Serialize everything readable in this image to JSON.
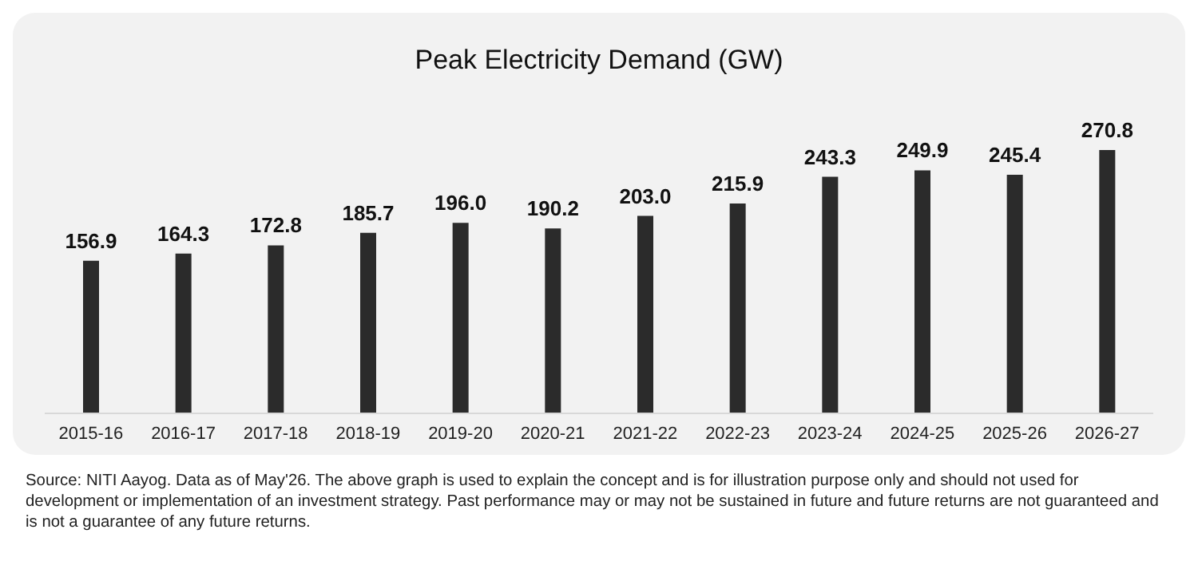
{
  "chart_data": {
    "type": "bar",
    "title": "Peak Electricity Demand (GW)",
    "categories": [
      "2015-16",
      "2016-17",
      "2017-18",
      "2018-19",
      "2019-20",
      "2020-21",
      "2021-22",
      "2022-23",
      "2023-24",
      "2024-25",
      "2025-26",
      "2026-27"
    ],
    "values": [
      156.9,
      164.3,
      172.8,
      185.7,
      196.0,
      190.2,
      203.0,
      215.9,
      243.3,
      249.9,
      245.4,
      270.8
    ],
    "value_labels": [
      "156.9",
      "164.3",
      "172.8",
      "185.7",
      "196.0",
      "190.2",
      "203.0",
      "215.9",
      "243.3",
      "249.9",
      "245.4",
      "270.8"
    ],
    "color": "#2b2b2b",
    "annotations": [
      "Source: NITI Aayog. Data as of May'26. The above graph is used to explain the concept and is for illustration purpose only and should not used for development or implementation of an investment strategy. Past performance may or may not be sustained in future and future returns are not guaranteed and is not a guarantee of any future returns."
    ]
  }
}
